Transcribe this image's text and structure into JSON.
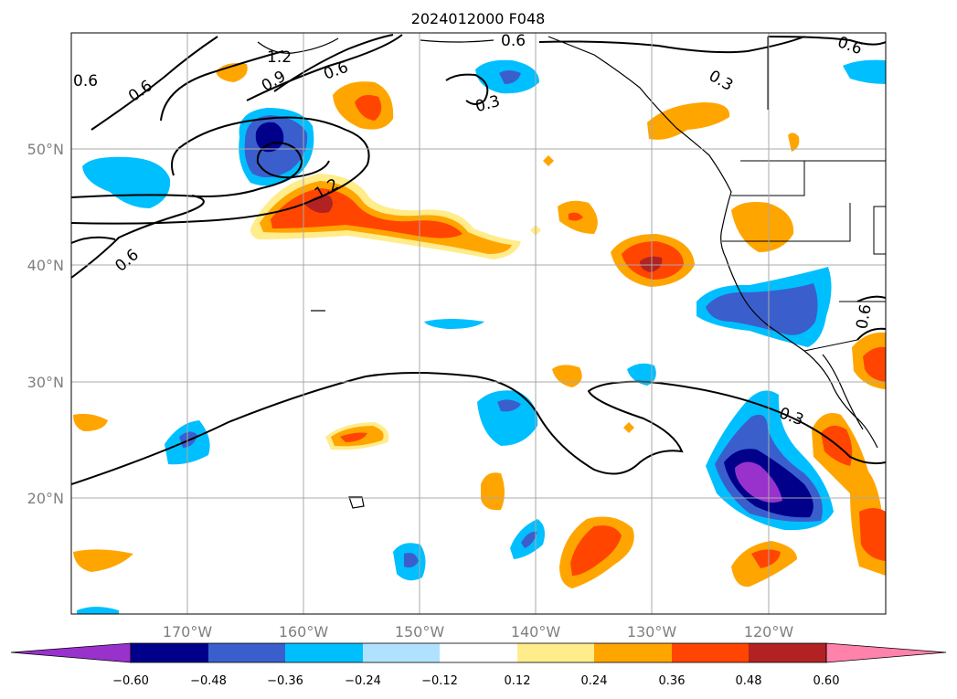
{
  "title": "2024012000 F048",
  "lat_ticks": [
    "50°N",
    "40°N",
    "30°N",
    "20°N"
  ],
  "lon_ticks": [
    "170°W",
    "160°W",
    "150°W",
    "140°W",
    "130°W",
    "120°W"
  ],
  "colorbar": {
    "labels": [
      "−0.60",
      "−0.48",
      "−0.36",
      "−0.24",
      "−0.12",
      "0.12",
      "0.24",
      "0.36",
      "0.48",
      "0.60"
    ],
    "colors": [
      "#9932cc",
      "#00008b",
      "#3a5fcd",
      "#00bfff",
      "#b0e2ff",
      "#ffffff",
      "#ffec8b",
      "#ffa500",
      "#ff4500",
      "#b22222",
      "#ff82ab"
    ]
  },
  "contour_labels": [
    "1.2",
    "0.9",
    "0.6",
    "0.6",
    "0.6",
    "1.2",
    "0.3",
    "0.6",
    "0.6",
    "0.6",
    "0.3",
    "0.3",
    "0.6"
  ]
}
